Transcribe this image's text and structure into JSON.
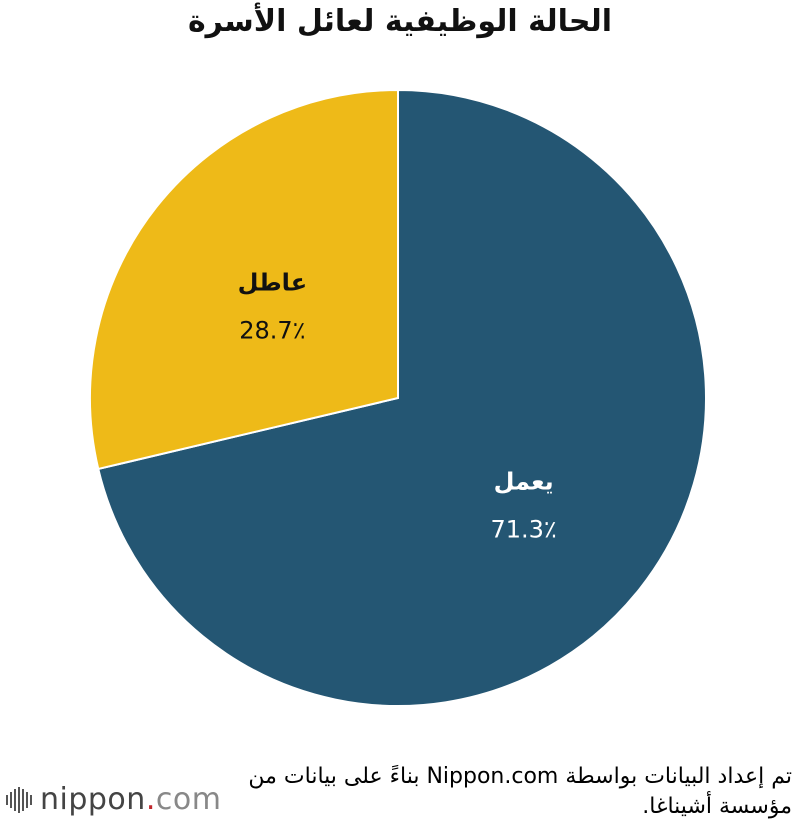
{
  "title": "الحالة الوظيفية لعائل الأسرة",
  "chart_data": {
    "type": "pie",
    "slices": [
      {
        "label": "يعمل",
        "value": 71.3,
        "value_text": "71.3٪",
        "color": "#245673",
        "text_color": "#ffffff"
      },
      {
        "label": "عاطل",
        "value": 28.7,
        "value_text": "28.7٪",
        "color": "#eeba18",
        "text_color": "#111111"
      }
    ],
    "start": "12 o'clock",
    "direction": "clockwise"
  },
  "source": "تم إعداد البيانات بواسطة Nippon.com بناءً على بيانات من مؤسسة أشيناغا.",
  "logo": {
    "name": "nippon",
    "dot": ".",
    "suffix": "com",
    "icon": "sound-wave-bars-icon"
  }
}
